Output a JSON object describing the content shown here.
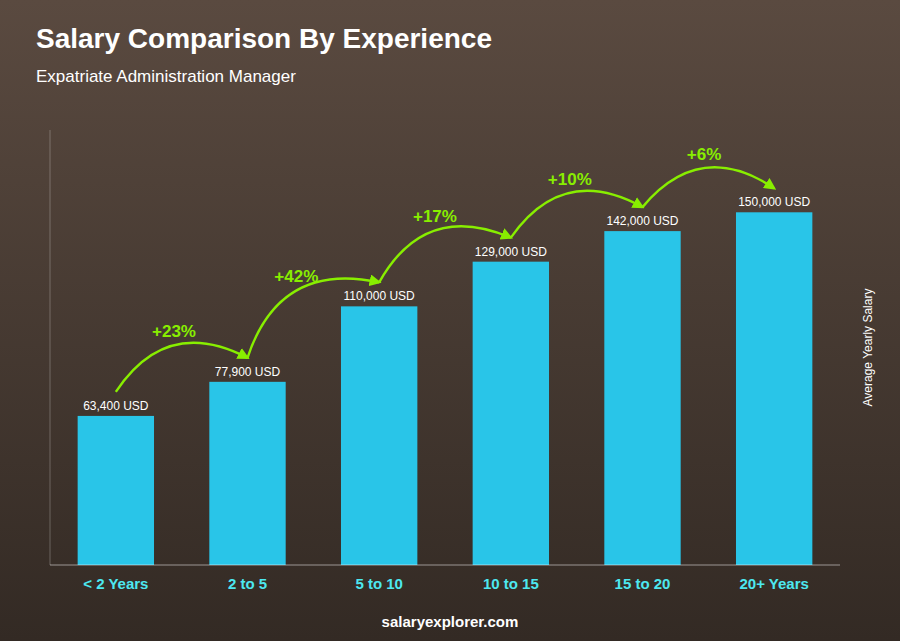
{
  "chart_data": {
    "type": "bar",
    "title": "Salary Comparison By Experience",
    "subtitle": "Expatriate Administration Manager",
    "categories": [
      "< 2 Years",
      "2 to 5",
      "5 to 10",
      "10 to 15",
      "15 to 20",
      "20+ Years"
    ],
    "values": [
      63400,
      77900,
      110000,
      129000,
      142000,
      150000
    ],
    "value_labels": [
      "63,400 USD",
      "77,900 USD",
      "110,000 USD",
      "129,000 USD",
      "142,000 USD",
      "150,000 USD"
    ],
    "data_labels": true,
    "color": "#29C5E8",
    "ylim": [
      0,
      185000
    ],
    "ylabel": "Average Yearly Salary",
    "tick_labels": "x",
    "grid": false,
    "annotations": [
      "+23%",
      "+42%",
      "+17%",
      "+10%",
      "+6%"
    ],
    "annotation_color": "#88EE00",
    "footer": "salaryexplorer.com"
  }
}
